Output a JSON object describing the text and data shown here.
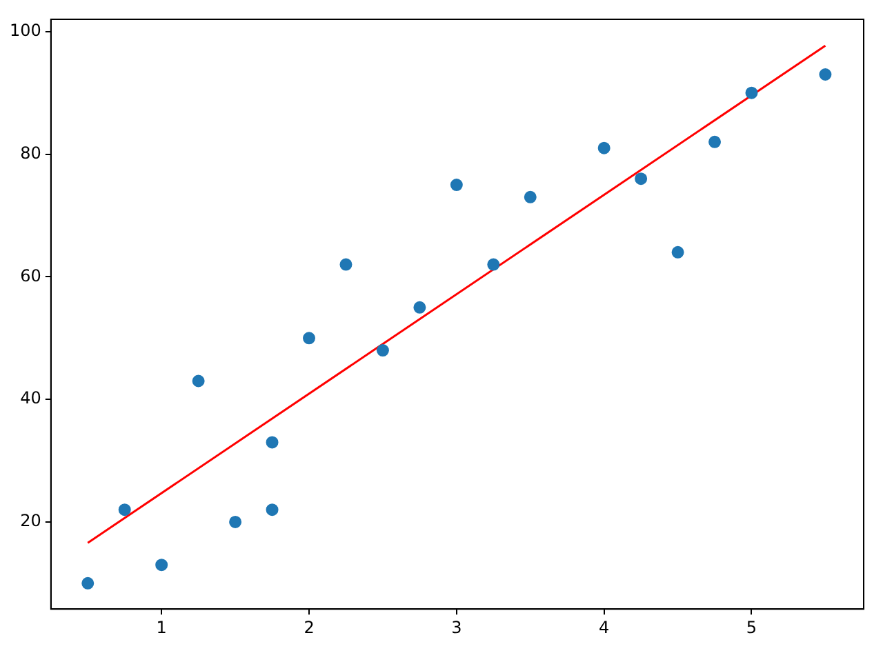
{
  "chart_data": {
    "type": "scatter",
    "xlim": [
      0.25,
      5.76
    ],
    "ylim": [
      5.8,
      102
    ],
    "xticks": [
      1,
      2,
      3,
      4,
      5
    ],
    "yticks": [
      20,
      40,
      60,
      80,
      100
    ],
    "series": [
      {
        "color": "#1f77b4",
        "marker": "circle",
        "x": [
          0.5,
          0.75,
          1,
          1.25,
          1.5,
          1.75,
          1.75,
          2,
          2.25,
          2.5,
          2.75,
          3,
          3.25,
          3.5,
          4,
          4.25,
          4.5,
          4.75,
          5,
          5.5
        ],
        "values": [
          10,
          22,
          13,
          43,
          20,
          33,
          22,
          50,
          62,
          48,
          55,
          75,
          62,
          73,
          81,
          76,
          64,
          82,
          90,
          93
        ]
      },
      {
        "type": "line",
        "color": "#ff0000",
        "marker": "none",
        "x": [
          0.5,
          5.5
        ],
        "values": [
          16.6,
          97.7
        ]
      }
    ]
  }
}
